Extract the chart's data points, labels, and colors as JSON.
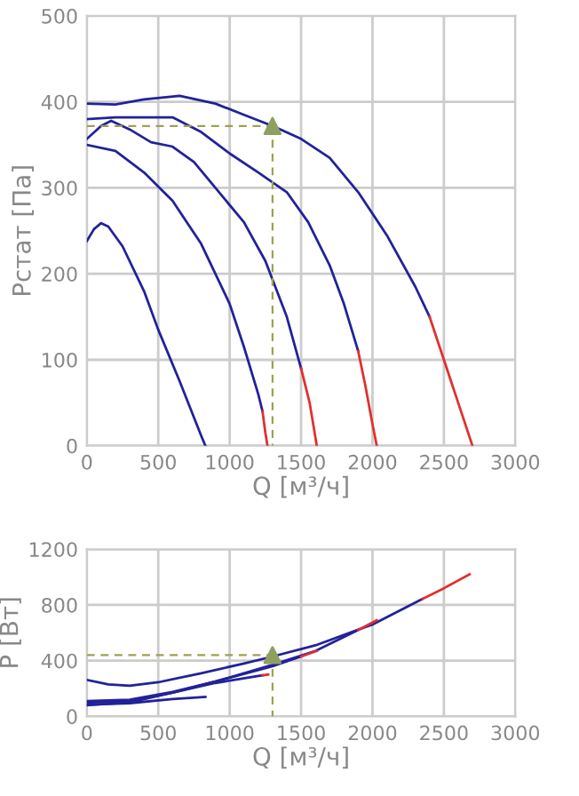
{
  "chart_data": [
    {
      "type": "line",
      "xlabel": "Q [м³/ч]",
      "ylabel": "Pстат [Па]",
      "xlim": [
        0,
        3000
      ],
      "ylim": [
        0,
        500
      ],
      "xticks": [
        0,
        500,
        1000,
        1500,
        2000,
        2500,
        3000
      ],
      "yticks": [
        0,
        100,
        200,
        300,
        400,
        500
      ],
      "grid": true,
      "legend": false,
      "series": [
        {
          "color": "#22229a",
          "x": [
            0,
            200,
            400,
            650,
            900,
            1100,
            1300,
            1500,
            1700,
            1900,
            2100,
            2300,
            2400
          ],
          "values": [
            398,
            397,
            403,
            407,
            398,
            385,
            372,
            357,
            335,
            295,
            245,
            185,
            150
          ]
        },
        {
          "color": "#e03030",
          "x": [
            2400,
            2500,
            2600,
            2700
          ],
          "values": [
            150,
            100,
            50,
            0
          ]
        },
        {
          "color": "#22229a",
          "x": [
            0,
            200,
            400,
            600,
            800,
            1000,
            1200,
            1400,
            1550,
            1700,
            1800,
            1900
          ],
          "values": [
            380,
            382,
            382,
            382,
            365,
            340,
            318,
            295,
            260,
            210,
            165,
            110
          ]
        },
        {
          "color": "#e03030",
          "x": [
            1900,
            1950,
            2000,
            2030
          ],
          "values": [
            110,
            70,
            25,
            0
          ]
        },
        {
          "color": "#22229a",
          "x": [
            0,
            100,
            170,
            300,
            450,
            600,
            750,
            900,
            1100,
            1250,
            1400,
            1500
          ],
          "values": [
            357,
            372,
            378,
            368,
            353,
            348,
            330,
            300,
            260,
            215,
            150,
            90
          ]
        },
        {
          "color": "#e03030",
          "x": [
            1500,
            1560,
            1610
          ],
          "values": [
            90,
            50,
            0
          ]
        },
        {
          "color": "#22229a",
          "x": [
            0,
            200,
            400,
            600,
            800,
            1000,
            1100,
            1200,
            1230
          ],
          "values": [
            350,
            343,
            318,
            285,
            235,
            165,
            115,
            60,
            40
          ]
        },
        {
          "color": "#e03030",
          "x": [
            1230,
            1250,
            1265
          ],
          "values": [
            40,
            15,
            0
          ]
        },
        {
          "color": "#22229a",
          "x": [
            0,
            50,
            100,
            150,
            250,
            400,
            500,
            650,
            800,
            830
          ],
          "values": [
            238,
            252,
            259,
            255,
            232,
            180,
            135,
            75,
            12,
            0
          ]
        },
        {
          "color": "#a0a050",
          "line_style": "dashed",
          "x": [
            0,
            1300
          ],
          "values": [
            372,
            372
          ]
        },
        {
          "color": "#a0a050",
          "line_style": "dashed",
          "x": [
            1300,
            1300
          ],
          "values": [
            372,
            0
          ]
        },
        {
          "type": "scatter",
          "marker": "triangle",
          "color": "#8f9f60",
          "x": [
            1300
          ],
          "values": [
            372
          ]
        }
      ]
    },
    {
      "type": "line",
      "xlabel": "Q [м³/ч]",
      "ylabel": "P [Вт]",
      "xlim": [
        0,
        3000
      ],
      "ylim": [
        0,
        1200
      ],
      "xticks": [
        0,
        500,
        1000,
        1500,
        2000,
        2500,
        3000
      ],
      "yticks": [
        0,
        400,
        800,
        1200
      ],
      "grid": true,
      "legend": false,
      "series": [
        {
          "color": "#22229a",
          "x": [
            0,
            150,
            300,
            500,
            800,
            1100,
            1300,
            1600,
            2000,
            2350
          ],
          "values": [
            262,
            230,
            220,
            245,
            310,
            380,
            430,
            510,
            660,
            843
          ]
        },
        {
          "color": "#e03030",
          "x": [
            2350,
            2500,
            2680
          ],
          "values": [
            843,
            920,
            1020
          ]
        },
        {
          "color": "#22229a",
          "x": [
            0,
            300,
            600,
            900,
            1300,
            1600,
            1900
          ],
          "values": [
            100,
            110,
            170,
            250,
            370,
            470,
            620
          ]
        },
        {
          "color": "#e03030",
          "x": [
            1900,
            2030
          ],
          "values": [
            620,
            690
          ]
        },
        {
          "color": "#22229a",
          "x": [
            0,
            300,
            600,
            900,
            1300,
            1500
          ],
          "values": [
            110,
            120,
            175,
            250,
            360,
            430
          ]
        },
        {
          "color": "#e03030",
          "x": [
            1500,
            1610
          ],
          "values": [
            430,
            470
          ]
        },
        {
          "color": "#22229a",
          "x": [
            0,
            300,
            600,
            900,
            1230
          ],
          "values": [
            80,
            100,
            170,
            240,
            295
          ]
        },
        {
          "color": "#e03030",
          "x": [
            1230,
            1270
          ],
          "values": [
            295,
            300
          ]
        },
        {
          "color": "#22229a",
          "x": [
            0,
            300,
            600,
            830
          ],
          "values": [
            85,
            95,
            125,
            140
          ]
        },
        {
          "color": "#a0a050",
          "line_style": "dashed",
          "x": [
            0,
            1300
          ],
          "values": [
            440,
            440
          ]
        },
        {
          "color": "#a0a050",
          "line_style": "dashed",
          "x": [
            1300,
            1300
          ],
          "values": [
            440,
            0
          ]
        },
        {
          "type": "scatter",
          "marker": "triangle",
          "color": "#8f9f60",
          "x": [
            1300
          ],
          "values": [
            440
          ]
        }
      ]
    }
  ]
}
